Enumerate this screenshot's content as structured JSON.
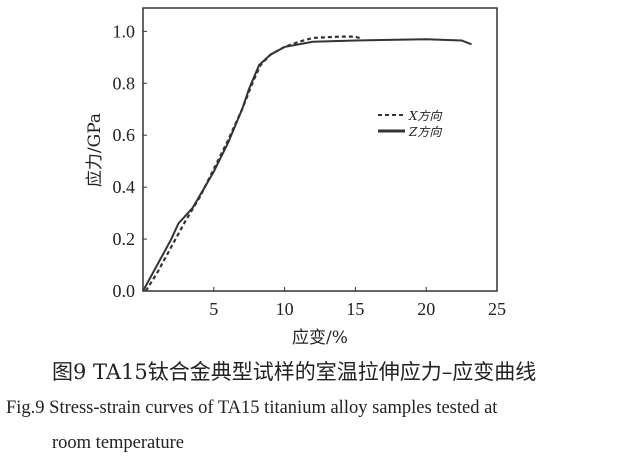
{
  "chart_data": {
    "type": "line",
    "title": "",
    "xlabel": "应变/%",
    "ylabel": "应力/GPa",
    "xlim": [
      0,
      25
    ],
    "ylim": [
      0,
      1.09
    ],
    "xticks": [
      5,
      10,
      15,
      20,
      25
    ],
    "yticks": [
      0.0,
      0.2,
      0.4,
      0.6,
      0.8,
      1.0
    ],
    "ytick_labels": [
      "0.0",
      "0.2",
      "0.4",
      "0.6",
      "0.8",
      "1.0"
    ],
    "grid": false,
    "legend_placement": "center-right",
    "series": [
      {
        "name": "X方向",
        "style": "dashed",
        "color": "#333333",
        "x": [
          0.2,
          1,
          2,
          3,
          4,
          5,
          6,
          7,
          7.8,
          8.3,
          9,
          10,
          11,
          12,
          14,
          15,
          15.5
        ],
        "y": [
          0,
          0.07,
          0.17,
          0.27,
          0.36,
          0.47,
          0.58,
          0.7,
          0.81,
          0.87,
          0.91,
          0.94,
          0.96,
          0.975,
          0.98,
          0.98,
          0.97
        ]
      },
      {
        "name": "Z方向",
        "style": "solid",
        "color": "#333333",
        "x": [
          0,
          1,
          2,
          2.5,
          3.5,
          5,
          6,
          7,
          7.5,
          8.2,
          9,
          10,
          12,
          15,
          20,
          22.5,
          23.2
        ],
        "y": [
          0,
          0.1,
          0.2,
          0.26,
          0.32,
          0.46,
          0.57,
          0.7,
          0.78,
          0.87,
          0.91,
          0.94,
          0.96,
          0.965,
          0.97,
          0.965,
          0.95
        ]
      }
    ]
  },
  "caption": {
    "cn": "图9 TA15钛合金典型试样的室温拉伸应力–应变曲线",
    "en_line1": "Fig.9  Stress-strain curves of TA15 titanium alloy samples tested at",
    "en_line2": "room temperature"
  }
}
